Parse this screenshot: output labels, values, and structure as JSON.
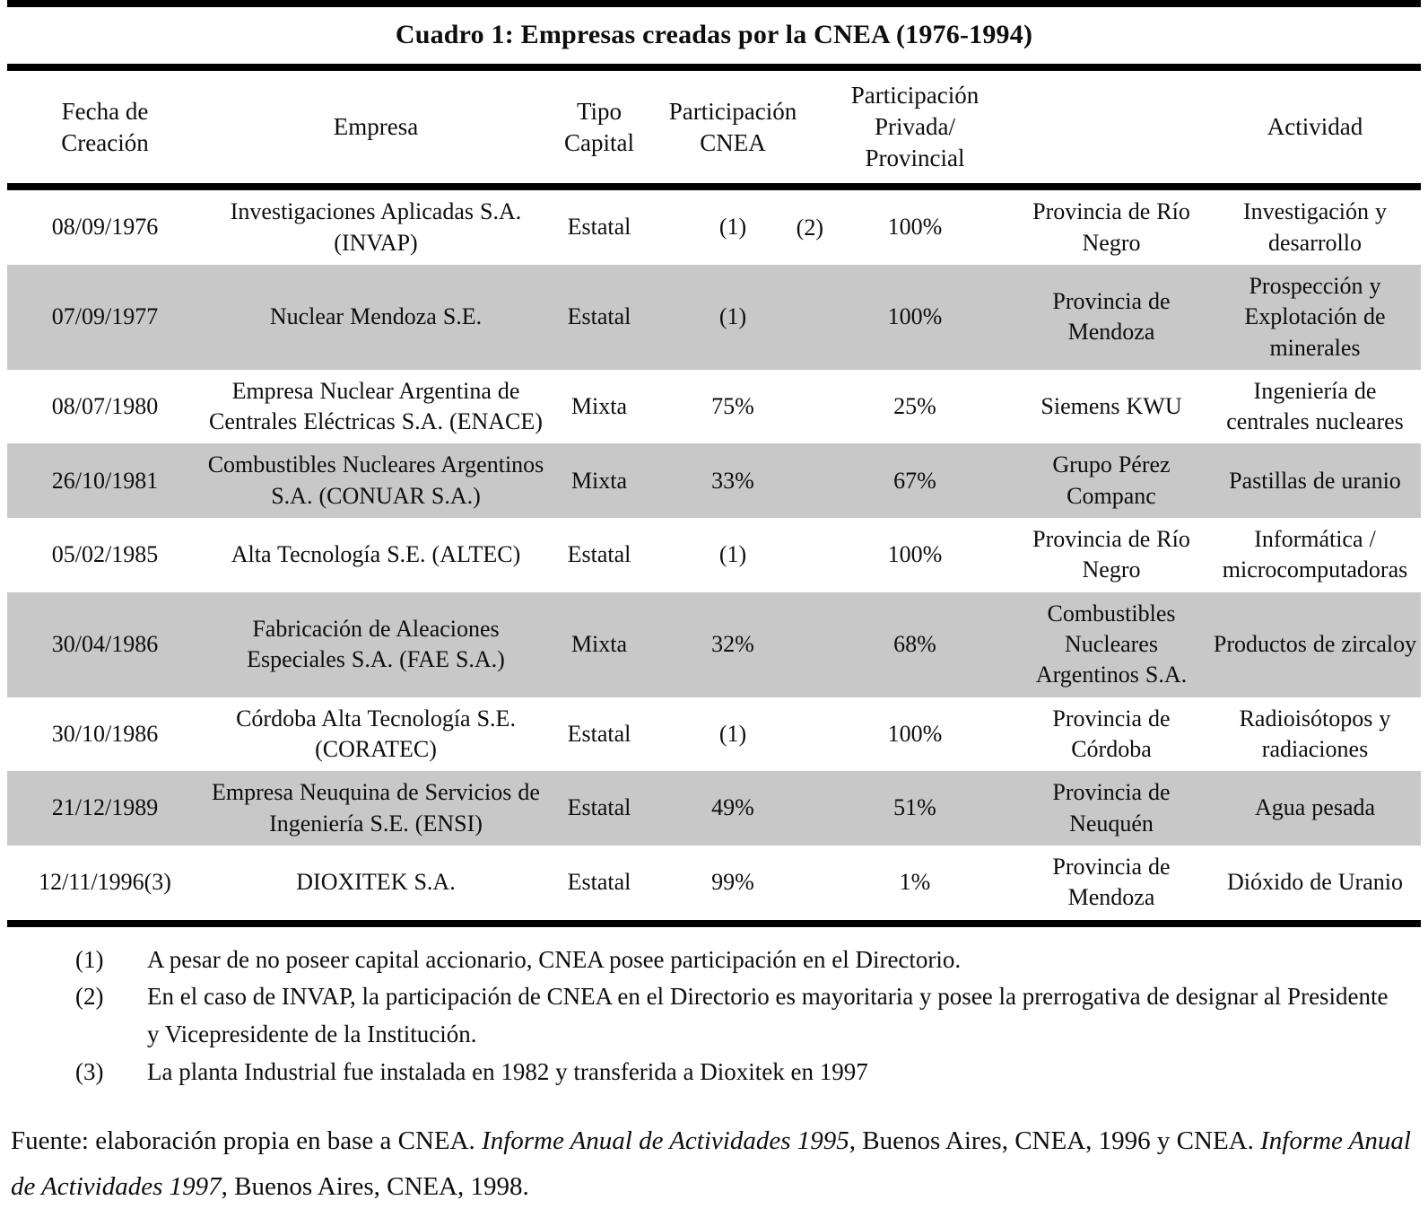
{
  "title": "Cuadro 1: Empresas creadas por la CNEA (1976-1994)",
  "table": {
    "headers": [
      [
        "Fecha de",
        "Creación"
      ],
      [
        "Empresa"
      ],
      [
        "Tipo",
        "Capital"
      ],
      [
        "Participación",
        "CNEA"
      ],
      [
        "Participación",
        "Privada/",
        "Provincial"
      ],
      [],
      [
        "Actividad"
      ]
    ],
    "rows": [
      {
        "fecha": "08/09/1976",
        "empresa": "Investigaciones Aplicadas S.A. (INVAP)",
        "tipo": "Estatal",
        "cnea": "(1)",
        "cnea_note": "(2)",
        "privada": "100%",
        "socio": "Provincia de Río Negro",
        "actividad": "Investigación y desarrollo",
        "shaded": false
      },
      {
        "fecha": "07/09/1977",
        "empresa": "Nuclear Mendoza S.E.",
        "tipo": "Estatal",
        "cnea": "(1)",
        "privada": "100%",
        "socio": "Provincia de Mendoza",
        "actividad": "Prospección y Explotación de minerales",
        "shaded": true
      },
      {
        "fecha": "08/07/1980",
        "empresa": "Empresa Nuclear Argentina de Centrales Eléctricas S.A. (ENACE)",
        "tipo": "Mixta",
        "cnea": "75%",
        "privada": "25%",
        "socio": "Siemens KWU",
        "actividad": "Ingeniería de centrales nucleares",
        "shaded": false
      },
      {
        "fecha": "26/10/1981",
        "empresa": "Combustibles Nucleares Argentinos S.A. (CONUAR S.A.)",
        "tipo": "Mixta",
        "cnea": "33%",
        "privada": "67%",
        "socio": "Grupo Pérez Companc",
        "actividad": "Pastillas de uranio",
        "shaded": true
      },
      {
        "fecha": "05/02/1985",
        "empresa": "Alta Tecnología S.E. (ALTEC)",
        "tipo": "Estatal",
        "cnea": "(1)",
        "privada": "100%",
        "socio": "Provincia de Río Negro",
        "actividad": "Informática / microcomputadoras",
        "shaded": false
      },
      {
        "fecha": "30/04/1986",
        "empresa": "Fabricación de Aleaciones Especiales S.A. (FAE S.A.)",
        "tipo": "Mixta",
        "cnea": "32%",
        "privada": "68%",
        "socio": "Combustibles Nucleares Argentinos S.A.",
        "actividad": "Productos de zircaloy",
        "shaded": true
      },
      {
        "fecha": "30/10/1986",
        "empresa": "Córdoba Alta Tecnología S.E. (CORATEC)",
        "tipo": "Estatal",
        "cnea": "(1)",
        "privada": "100%",
        "socio": "Provincia de Córdoba",
        "actividad": "Radioisótopos y radiaciones",
        "shaded": false
      },
      {
        "fecha": "21/12/1989",
        "empresa": "Empresa Neuquina de Servicios de Ingeniería S.E. (ENSI)",
        "tipo": "Estatal",
        "cnea": "49%",
        "privada": "51%",
        "socio": "Provincia de Neuquén",
        "actividad": "Agua pesada",
        "shaded": true
      },
      {
        "fecha": "12/11/1996(3)",
        "empresa": "DIOXITEK S.A.",
        "tipo": "Estatal",
        "cnea": "99%",
        "privada": "1%",
        "socio": "Provincia de Mendoza",
        "actividad": "Dióxido de Uranio",
        "shaded": false
      }
    ]
  },
  "footnotes": [
    {
      "num": "(1)",
      "text": "A pesar de no poseer capital accionario, CNEA posee participación en el Directorio."
    },
    {
      "num": "(2)",
      "text": "En el caso de INVAP, la participación de CNEA en el Directorio es mayoritaria y posee la prerrogativa de designar al Presidente y Vicepresidente de la Institución."
    },
    {
      "num": "(3)",
      "text": "La planta Industrial fue instalada en 1982 y transferida a Dioxitek en 1997"
    }
  ],
  "fuente": {
    "prefix": "Fuente: elaboración propia en base a CNEA. ",
    "italic1": "Informe Anual de Actividades 1995",
    "mid": ", Buenos Aires, CNEA, 1996 y CNEA. ",
    "italic2": "Informe Anual de Actividades 1997",
    "suffix": ", Buenos Aires, CNEA, 1998."
  },
  "colors": {
    "row_shade": "#c8c8c8",
    "rule": "#000000",
    "text": "#0e0e0e"
  }
}
